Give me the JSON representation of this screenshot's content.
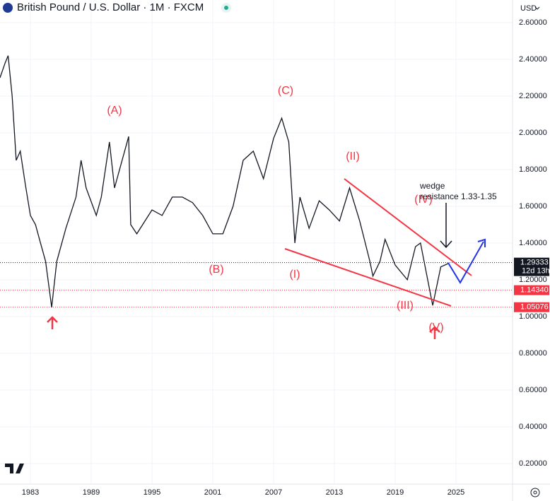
{
  "chart_data": {
    "type": "line",
    "title": "British Pound / U.S. Dollar · 1M · FXCM",
    "currency": "USD",
    "x": [
      1980.0,
      1980.5,
      1980.8,
      1981.2,
      1981.6,
      1982.0,
      1982.5,
      1983.0,
      1983.5,
      1984.0,
      1984.5,
      1985.1,
      1985.6,
      1986.5,
      1987.5,
      1988.0,
      1988.5,
      1989.5,
      1990.0,
      1990.8,
      1991.3,
      1992.7,
      1992.9,
      1993.5,
      1995.0,
      1996.0,
      1997.0,
      1998.0,
      1999.0,
      2000.0,
      2001.0,
      2002.0,
      2003.0,
      2004.0,
      2005.0,
      2006.0,
      2007.0,
      2007.8,
      2008.5,
      2009.1,
      2009.6,
      2010.5,
      2011.5,
      2012.5,
      2013.5,
      2014.5,
      2015.5,
      2016.5,
      2016.8,
      2017.5,
      2018.0,
      2019.0,
      2020.2,
      2021.0,
      2021.5,
      2022.7,
      2023.5,
      2024.3
    ],
    "values": [
      2.3,
      2.38,
      2.42,
      2.2,
      1.85,
      1.9,
      1.72,
      1.55,
      1.5,
      1.4,
      1.3,
      1.05,
      1.3,
      1.48,
      1.65,
      1.85,
      1.7,
      1.55,
      1.65,
      1.95,
      1.7,
      1.98,
      1.5,
      1.45,
      1.58,
      1.55,
      1.65,
      1.65,
      1.62,
      1.55,
      1.45,
      1.45,
      1.6,
      1.85,
      1.9,
      1.75,
      1.97,
      2.08,
      1.95,
      1.4,
      1.65,
      1.48,
      1.63,
      1.58,
      1.52,
      1.7,
      1.52,
      1.3,
      1.22,
      1.3,
      1.42,
      1.28,
      1.2,
      1.38,
      1.4,
      1.06,
      1.27,
      1.29
    ],
    "color": "#131722",
    "xlim": [
      1980.0,
      2030.58
    ],
    "ylim": [
      0.088,
      2.723
    ],
    "xticks": [
      1983,
      1989,
      1995,
      2001,
      2007,
      2013,
      2019,
      2025
    ],
    "yticks": [
      {
        "value": 0.2,
        "label": "0.20000"
      },
      {
        "value": 0.4,
        "label": "0.40000"
      },
      {
        "value": 0.6,
        "label": "0.60000"
      },
      {
        "value": 0.8,
        "label": "0.80000"
      },
      {
        "value": 1.0,
        "label": "1.00000"
      },
      {
        "value": 1.2,
        "label": "1.20000"
      },
      {
        "value": 1.4,
        "label": "1.40000"
      },
      {
        "value": 1.6,
        "label": "1.60000"
      },
      {
        "value": 1.8,
        "label": "1.80000"
      },
      {
        "value": 2.0,
        "label": "2.00000"
      },
      {
        "value": 2.2,
        "label": "2.20000"
      },
      {
        "value": 2.4,
        "label": "2.40000"
      },
      {
        "value": 2.6,
        "label": "2.60000"
      }
    ],
    "grid": true,
    "price_lines": [
      {
        "value": 1.29333,
        "label": "1.29333",
        "color": "#131722",
        "countdown": "12d 13h"
      },
      {
        "value": 1.1434,
        "label": "1.14340",
        "color": "#f23645"
      },
      {
        "value": 1.05076,
        "label": "1.05076",
        "color": "#f23645"
      }
    ],
    "wave_labels": [
      "(A)",
      "(C)",
      "(II)",
      "(IV)",
      "(B)",
      "(I)",
      "(III)",
      "(V)"
    ],
    "annotation": [
      "wedge",
      "resistance 1.33-1.35"
    ]
  }
}
